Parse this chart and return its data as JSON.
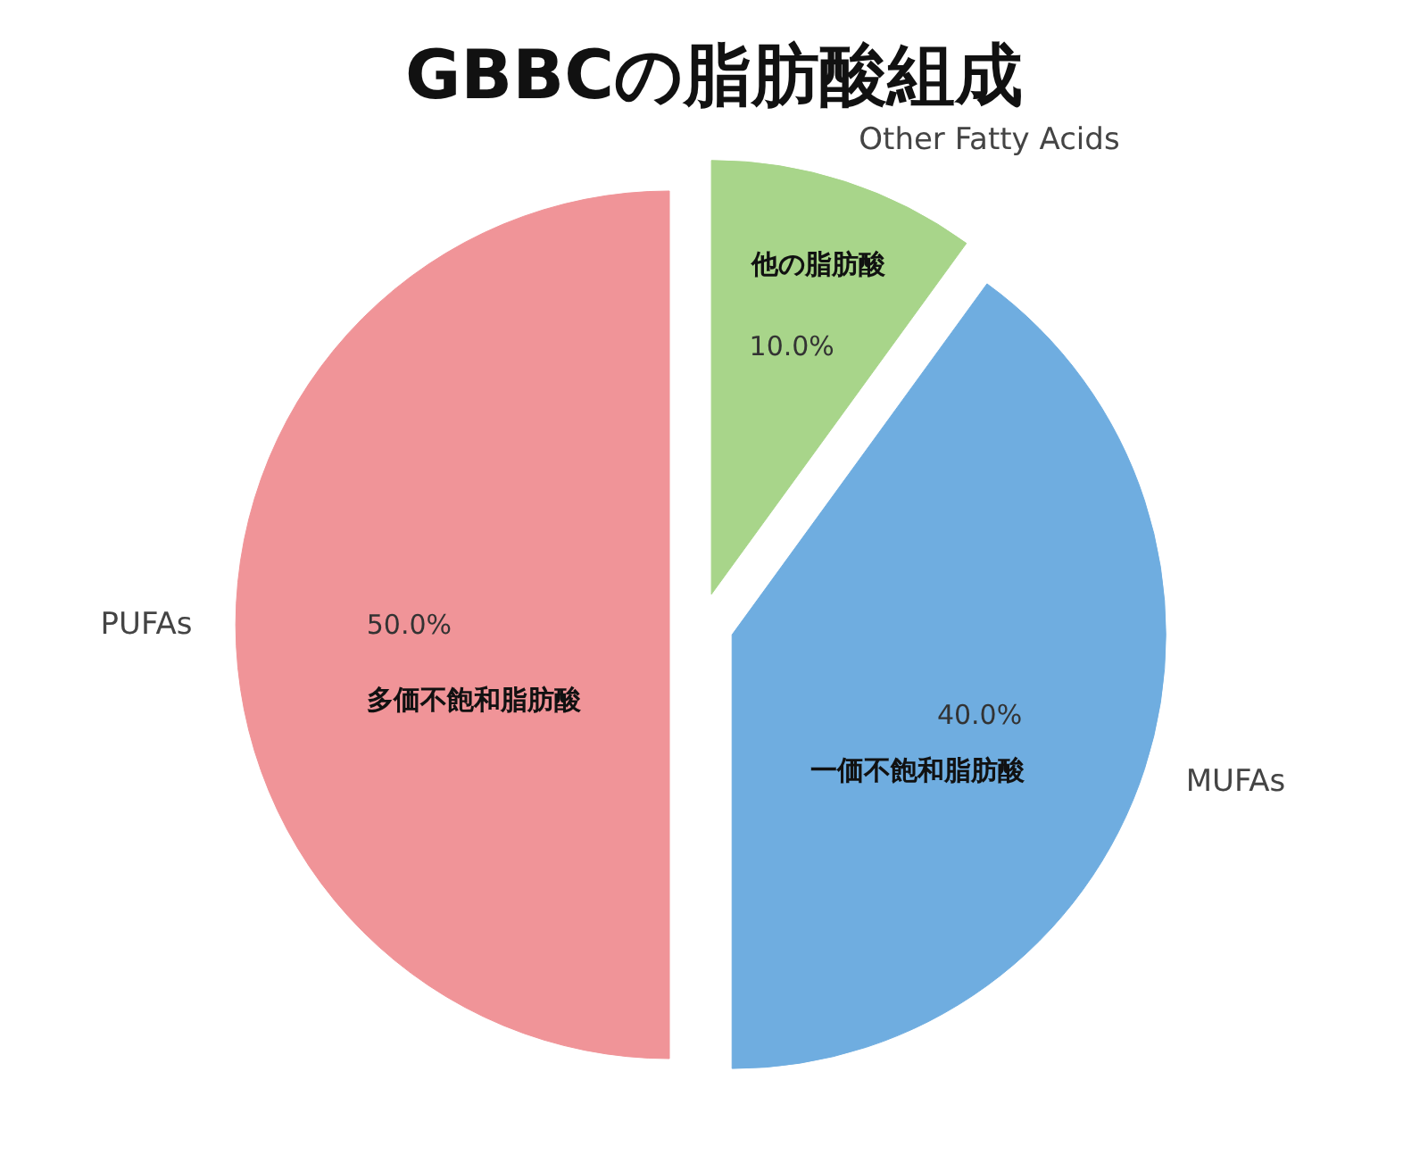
{
  "chart_data": {
    "type": "pie",
    "title": "GBBCの脂肪酸組成",
    "categories": [
      "PUFAs",
      "MUFAs",
      "Other Fatty Acids"
    ],
    "values": [
      50,
      40,
      10
    ],
    "colors": [
      "#f09498",
      "#6fade0",
      "#a8d58a"
    ],
    "value_labels": [
      "50.0%",
      "40.0%",
      "10.0%"
    ],
    "annotations": [
      {
        "text": "多価不飽和脂肪酸",
        "x": "PUFAs"
      },
      {
        "text": "一価不飽和脂肪酸",
        "x": "MUFAs"
      },
      {
        "text": "他の脂肪酸",
        "x": "Other Fatty Acids"
      }
    ]
  }
}
